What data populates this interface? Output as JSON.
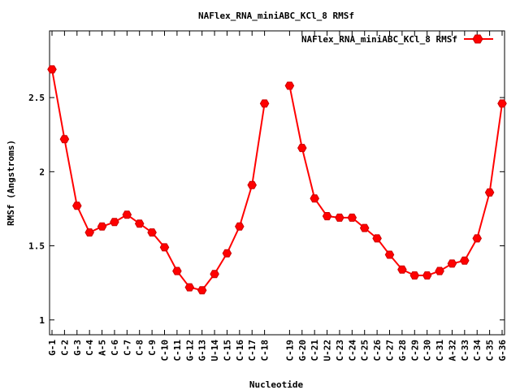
{
  "chart_data": {
    "type": "line",
    "title": "NAFlex_RNA_miniABC_KCl_8 RMSf",
    "xlabel": "Nucleotide",
    "ylabel": "RMSf (Angstroms)",
    "ylim": [
      0.9,
      2.95
    ],
    "yticks": [
      "1",
      "1.5",
      "2",
      "2.5"
    ],
    "grid": false,
    "legend": "top-right",
    "series": [
      {
        "name": "NAFlex_RNA_miniABC_KCl_8 RMSf",
        "color": "#ff0000",
        "segments": [
          {
            "x": [
              "G-1",
              "C-2",
              "G-3",
              "C-4",
              "A-5",
              "C-6",
              "C-7",
              "C-8",
              "C-9",
              "C-10",
              "C-11",
              "G-12",
              "G-13",
              "U-14",
              "C-15",
              "C-16",
              "C-17",
              "C-18"
            ],
            "values": [
              2.69,
              2.22,
              1.77,
              1.59,
              1.63,
              1.66,
              1.71,
              1.65,
              1.59,
              1.49,
              1.33,
              1.22,
              1.2,
              1.31,
              1.45,
              1.63,
              1.91,
              2.46
            ]
          },
          {
            "x": [
              "C-19",
              "G-20",
              "C-21",
              "U-22",
              "C-23",
              "C-24",
              "C-25",
              "C-26",
              "C-27",
              "G-28",
              "C-29",
              "C-30",
              "C-31",
              "A-32",
              "C-33",
              "C-34",
              "C-35",
              "G-36"
            ],
            "values": [
              2.58,
              2.16,
              1.82,
              1.7,
              1.69,
              1.69,
              1.62,
              1.55,
              1.44,
              1.34,
              1.3,
              1.3,
              1.33,
              1.38,
              1.4,
              1.55,
              1.86,
              2.46
            ]
          }
        ]
      }
    ]
  }
}
